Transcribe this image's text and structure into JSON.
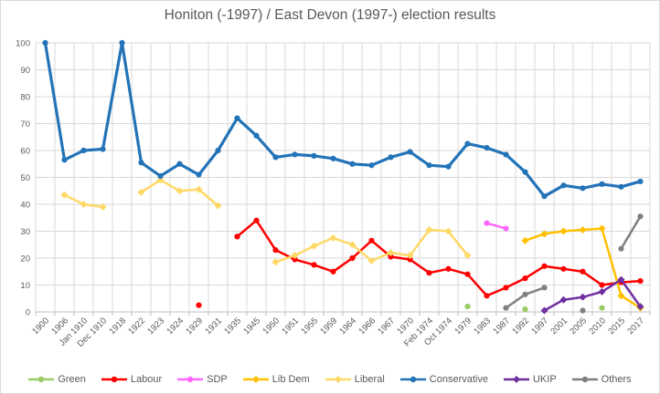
{
  "title": "Honiton (-1997) / East Devon (1997-) election results",
  "chart_data": {
    "type": "line",
    "title": "Honiton (-1997) / East Devon (1997-) election results",
    "grid": true,
    "legend_position": "bottom",
    "x_label_rotation_deg": 45,
    "y_axis": {
      "min": 0,
      "max": 100,
      "tick_step": 10,
      "ticks": [
        0,
        10,
        20,
        30,
        40,
        50,
        60,
        70,
        80,
        90,
        100
      ]
    },
    "categories": [
      "1900",
      "1906",
      "Jan 1910",
      "Dec 1910",
      "1918",
      "1922",
      "1923",
      "1924",
      "1929",
      "1931",
      "1935",
      "1945",
      "1950",
      "1951",
      "1955",
      "1959",
      "1964",
      "1966",
      "1967",
      "1970",
      "Feb 1974",
      "Oct 1974",
      "1979",
      "1983",
      "1987",
      "1992",
      "1997",
      "2001",
      "2005",
      "2010",
      "2015",
      "2017"
    ],
    "series": [
      {
        "name": "Green",
        "color": "#9ACB64",
        "marker": "circle",
        "line_width": 2.5,
        "values": [
          null,
          null,
          null,
          null,
          null,
          null,
          null,
          null,
          null,
          null,
          null,
          null,
          null,
          null,
          null,
          null,
          null,
          null,
          null,
          null,
          null,
          null,
          2,
          null,
          null,
          1,
          null,
          null,
          null,
          1.5,
          null,
          null
        ]
      },
      {
        "name": "Labour",
        "color": "#FE0000",
        "marker": "circle",
        "line_width": 2.5,
        "values": [
          null,
          null,
          null,
          null,
          null,
          null,
          null,
          null,
          2.5,
          null,
          28,
          34,
          23,
          19.5,
          17.5,
          15,
          20,
          26.5,
          20.5,
          19.5,
          14.5,
          16,
          14,
          6,
          9,
          12.5,
          17,
          16,
          15,
          10,
          11,
          11.5
        ]
      },
      {
        "name": "SDP",
        "color": "#FF66FF",
        "marker": "circle",
        "line_width": 2.5,
        "values": [
          null,
          null,
          null,
          null,
          null,
          null,
          null,
          null,
          null,
          null,
          null,
          null,
          null,
          null,
          null,
          null,
          null,
          null,
          null,
          null,
          null,
          null,
          null,
          33,
          31,
          null,
          null,
          null,
          null,
          null,
          null,
          null
        ]
      },
      {
        "name": "Lib Dem",
        "color": "#FFC000",
        "marker": "diamond",
        "line_width": 2.5,
        "values": [
          null,
          null,
          null,
          null,
          null,
          null,
          null,
          null,
          null,
          null,
          null,
          null,
          null,
          null,
          null,
          null,
          null,
          null,
          null,
          null,
          null,
          null,
          null,
          null,
          null,
          26.5,
          29,
          30,
          30.5,
          31,
          6,
          1.5
        ]
      },
      {
        "name": "Liberal",
        "color": "#FFD966",
        "marker": "diamond",
        "line_width": 2.5,
        "values": [
          null,
          43.5,
          40,
          39,
          null,
          44.5,
          49,
          45,
          45.5,
          39.5,
          null,
          null,
          18.5,
          21,
          24.5,
          27.5,
          25,
          19,
          22,
          21,
          30.5,
          30,
          21,
          null,
          null,
          null,
          null,
          null,
          null,
          null,
          null,
          null
        ]
      },
      {
        "name": "Conservative",
        "color": "#2273B8",
        "marker": "circle",
        "line_width": 3.2,
        "values": [
          100,
          56.5,
          60,
          60.5,
          100,
          55.5,
          50.5,
          55,
          51,
          60,
          72,
          65.5,
          57.5,
          58.5,
          58,
          57,
          55,
          54.5,
          57.5,
          59.5,
          54.5,
          54,
          62.5,
          61,
          58.5,
          52,
          43,
          47,
          46,
          47.5,
          46.5,
          48.5
        ]
      },
      {
        "name": "UKIP",
        "color": "#7030A0",
        "marker": "diamond",
        "line_width": 2.5,
        "values": [
          null,
          null,
          null,
          null,
          null,
          null,
          null,
          null,
          null,
          null,
          null,
          null,
          null,
          null,
          null,
          null,
          null,
          null,
          null,
          null,
          null,
          null,
          null,
          null,
          null,
          null,
          0.5,
          4.5,
          5.5,
          7.5,
          12,
          2
        ]
      },
      {
        "name": "Others",
        "color": "#808080",
        "marker": "circle",
        "line_width": 2.5,
        "values": [
          null,
          null,
          null,
          null,
          null,
          null,
          null,
          null,
          null,
          null,
          null,
          null,
          null,
          null,
          null,
          null,
          null,
          null,
          null,
          null,
          null,
          null,
          null,
          null,
          1.5,
          6.5,
          9,
          null,
          0.5,
          null,
          23.5,
          35.5
        ]
      }
    ],
    "style": {
      "text_color": "#595959",
      "gridline_color": "#D9D9D9",
      "axis_line_color": "#BFBFBF",
      "background": "#FFFFFF"
    }
  }
}
